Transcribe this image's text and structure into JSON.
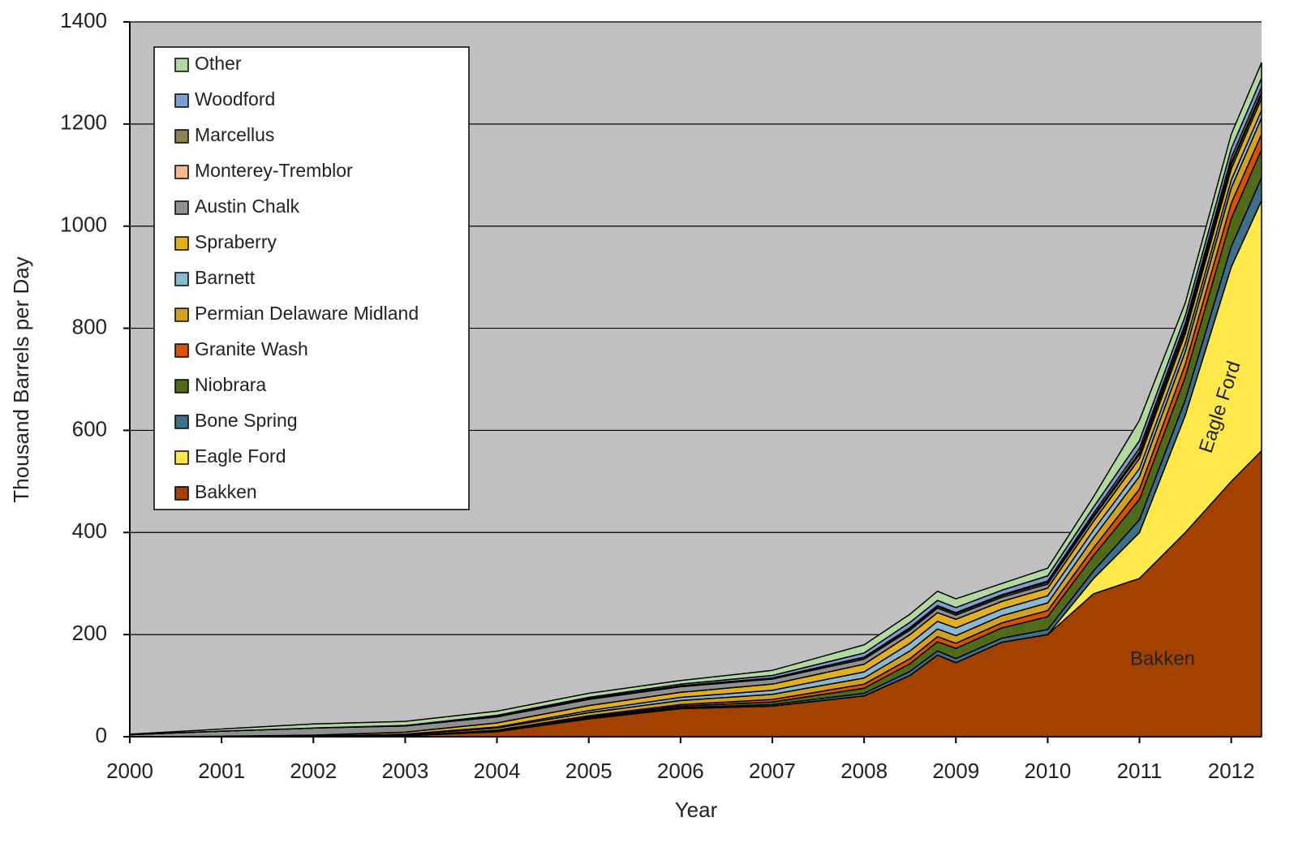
{
  "chart_data": {
    "type": "stacked_area",
    "x_label": "Year",
    "y_label": "Thousand Barrels per Day",
    "x": [
      2000,
      2001,
      2002,
      2003,
      2004,
      2005,
      2006,
      2007,
      2008,
      2008.5,
      2008.8,
      2009,
      2009.5,
      2010,
      2010.5,
      2011,
      2011.5,
      2012,
      2012.33
    ],
    "xlim": [
      2000,
      2012.33
    ],
    "xticks": [
      2000,
      2001,
      2002,
      2003,
      2004,
      2005,
      2006,
      2007,
      2008,
      2009,
      2010,
      2011,
      2012
    ],
    "ylim": [
      0,
      1400
    ],
    "yticks": [
      0,
      200,
      400,
      600,
      800,
      1000,
      1200,
      1400
    ],
    "grid": true,
    "legend": "upper left",
    "series": [
      {
        "name": "Bakken",
        "color": "#a34200",
        "values": [
          0,
          0,
          0,
          2,
          10,
          35,
          55,
          60,
          80,
          120,
          160,
          145,
          185,
          200,
          280,
          310,
          400,
          500,
          560
        ]
      },
      {
        "name": "Eagle Ford",
        "color": "#ffe84a",
        "values": [
          0,
          0,
          0,
          0,
          0,
          0,
          0,
          0,
          0,
          0,
          0,
          0,
          0,
          0,
          30,
          90,
          230,
          420,
          490
        ]
      },
      {
        "name": "Bone Spring",
        "color": "#3f6f8a",
        "values": [
          0,
          0,
          0,
          0,
          1,
          2,
          2,
          3,
          5,
          8,
          8,
          8,
          8,
          10,
          15,
          25,
          30,
          40,
          45
        ]
      },
      {
        "name": "Niobrara",
        "color": "#4f6b1a",
        "values": [
          0,
          0,
          0,
          0,
          1,
          2,
          3,
          5,
          10,
          15,
          18,
          20,
          20,
          25,
          30,
          40,
          45,
          55,
          55
        ]
      },
      {
        "name": "Granite Wash",
        "color": "#d35400",
        "values": [
          0,
          0,
          0,
          0,
          1,
          2,
          3,
          5,
          8,
          10,
          10,
          10,
          10,
          12,
          15,
          20,
          25,
          30,
          30
        ]
      },
      {
        "name": "Permian Delaware Midland",
        "color": "#d4a020",
        "values": [
          0,
          0,
          1,
          2,
          4,
          6,
          8,
          10,
          12,
          15,
          15,
          15,
          14,
          15,
          20,
          25,
          25,
          30,
          32
        ]
      },
      {
        "name": "Barnett",
        "color": "#8ab8d0",
        "values": [
          0,
          0,
          0,
          1,
          2,
          4,
          6,
          8,
          12,
          15,
          15,
          15,
          13,
          14,
          15,
          15,
          15,
          15,
          15
        ]
      },
      {
        "name": "Spraberry",
        "color": "#e0b020",
        "values": [
          0,
          1,
          2,
          4,
          8,
          10,
          10,
          12,
          15,
          17,
          17,
          17,
          15,
          15,
          17,
          20,
          20,
          22,
          23
        ]
      },
      {
        "name": "Austin Chalk",
        "color": "#909090",
        "values": [
          4,
          10,
          14,
          12,
          12,
          12,
          11,
          10,
          10,
          9,
          9,
          8,
          8,
          8,
          8,
          8,
          8,
          8,
          8
        ]
      },
      {
        "name": "Monterey-Tremblor",
        "color": "#f5b890",
        "values": [
          0,
          0,
          0,
          1,
          2,
          2,
          2,
          2,
          3,
          3,
          3,
          3,
          3,
          3,
          3,
          4,
          4,
          4,
          4
        ]
      },
      {
        "name": "Marcellus",
        "color": "#8a8050",
        "values": [
          0,
          0,
          0,
          0,
          0,
          0,
          0,
          0,
          1,
          2,
          2,
          2,
          2,
          3,
          5,
          8,
          8,
          10,
          10
        ]
      },
      {
        "name": "Woodford",
        "color": "#7aa0d0",
        "values": [
          0,
          0,
          0,
          0,
          1,
          2,
          3,
          5,
          8,
          10,
          10,
          10,
          9,
          10,
          12,
          15,
          15,
          18,
          18
        ]
      },
      {
        "name": "Other",
        "color": "#b0d8a0",
        "values": [
          1,
          4,
          8,
          8,
          8,
          8,
          7,
          10,
          16,
          16,
          18,
          17,
          13,
          15,
          20,
          40,
          25,
          28,
          30
        ]
      }
    ],
    "annotations": [
      "Bakken",
      "Eagle Ford"
    ]
  }
}
